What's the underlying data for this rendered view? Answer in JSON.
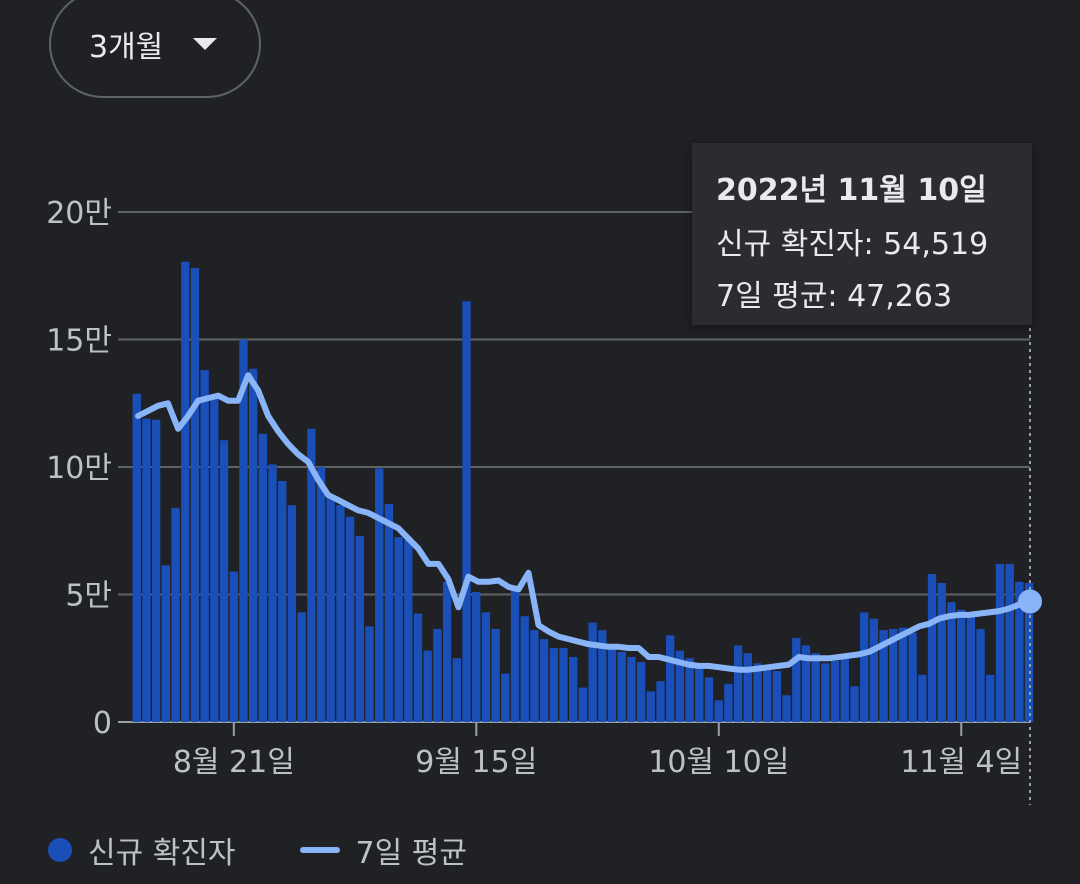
{
  "range_selector": {
    "label": "3개월",
    "icon": "dropdown-caret-icon"
  },
  "tooltip": {
    "date": "2022년 11월 10일",
    "cases_line": "신규 확진자: 54,519",
    "avg_line": "7일 평균: 47,263"
  },
  "legend": {
    "cases": "신규 확진자",
    "avg": "7일 평균"
  },
  "colors": {
    "bar": "#1a4fba",
    "line": "#8ab4f8",
    "grid": "#5f6368",
    "text": "#bdc1c6"
  },
  "chart_data": {
    "type": "bar",
    "ylim": [
      0,
      200000
    ],
    "y_ticks": [
      {
        "value": 0,
        "label": "0"
      },
      {
        "value": 50000,
        "label": "5만"
      },
      {
        "value": 100000,
        "label": "10만"
      },
      {
        "value": 150000,
        "label": "15만"
      },
      {
        "value": 200000,
        "label": "20만"
      }
    ],
    "x_ticks": [
      {
        "date": "2022-08-21",
        "label": "8월 21일"
      },
      {
        "date": "2022-09-15",
        "label": "9월 15일"
      },
      {
        "date": "2022-10-10",
        "label": "10월 10일"
      },
      {
        "date": "2022-11-04",
        "label": "11월 4일"
      }
    ],
    "start_date": "2022-08-11",
    "end_date": "2022-11-10",
    "series": [
      {
        "name": "신규 확진자",
        "kind": "bar",
        "values": [
          128700,
          119000,
          118500,
          61500,
          84000,
          180500,
          178000,
          138000,
          127500,
          110500,
          59000,
          150000,
          138500,
          113000,
          101000,
          94500,
          85000,
          43000,
          115000,
          100000,
          89000,
          85000,
          80500,
          73000,
          37500,
          99500,
          85500,
          72500,
          71500,
          42500,
          28000,
          36500,
          55000,
          25000,
          165000,
          51000,
          43000,
          36500,
          19000,
          52000,
          41500,
          36000,
          32500,
          29000,
          29000,
          25500,
          13500,
          39000,
          36000,
          28500,
          27500,
          25500,
          23500,
          12000,
          16000,
          34000,
          28000,
          25000,
          22000,
          17500,
          8500,
          15000,
          30000,
          27000,
          23000,
          21000,
          20000,
          10500,
          33000,
          30000,
          27000,
          23000,
          24000,
          25000,
          14000,
          43000,
          40500,
          36000,
          36500,
          37000,
          35000,
          18500,
          58000,
          54500,
          47000,
          44000,
          43000,
          36500,
          18500,
          62000,
          62000,
          55000,
          54519
        ]
      },
      {
        "name": "7일 평균",
        "kind": "line",
        "values": [
          120000,
          122000,
          124000,
          125000,
          115000,
          120000,
          126000,
          127000,
          128000,
          126000,
          126000,
          136000,
          130000,
          120000,
          114000,
          109000,
          105000,
          102000,
          95000,
          89000,
          87000,
          85000,
          83000,
          82000,
          80000,
          78000,
          76000,
          72000,
          68000,
          62000,
          62000,
          56000,
          45000,
          57000,
          55000,
          55000,
          55500,
          53000,
          52000,
          58500,
          38000,
          35500,
          33500,
          32500,
          31500,
          30500,
          30000,
          29500,
          29500,
          29000,
          29000,
          25500,
          25500,
          24500,
          23500,
          22500,
          22000,
          22000,
          21500,
          21000,
          20500,
          20500,
          21000,
          21500,
          22000,
          22500,
          25500,
          25000,
          25000,
          25000,
          25500,
          26000,
          26500,
          27500,
          29500,
          31500,
          33500,
          35500,
          37500,
          38500,
          40500,
          41500,
          42000,
          42000,
          42500,
          43000,
          43500,
          44500,
          46000,
          47263
        ]
      }
    ]
  }
}
